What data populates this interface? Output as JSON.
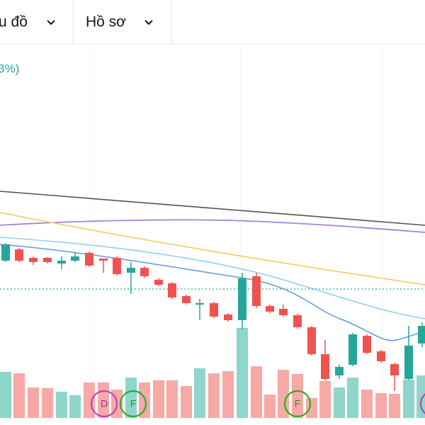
{
  "toolbar": {
    "items": [
      "u đồ",
      "Hồ sơ"
    ]
  },
  "legend": {
    "text": "3%)"
  },
  "markers": [
    {
      "label": "D"
    },
    {
      "label": "F"
    },
    {
      "label": "F"
    }
  ]
}
